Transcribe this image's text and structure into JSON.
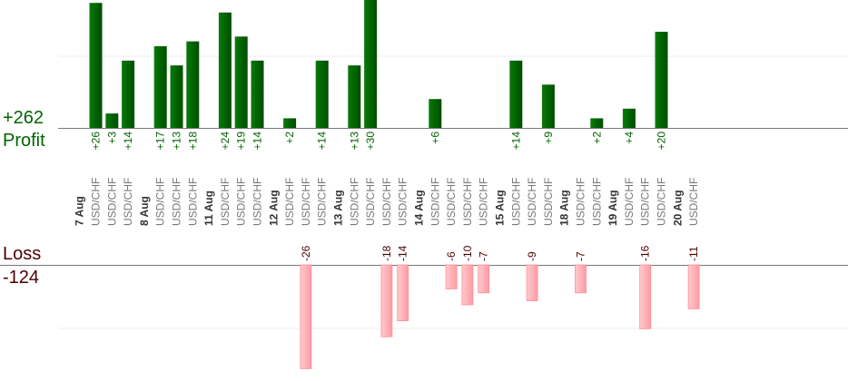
{
  "summary": {
    "profit_total": "+262",
    "profit_label": "Profit",
    "loss_label": "Loss",
    "loss_total": "-124"
  },
  "colors": {
    "profit_bar": "#006400",
    "profit_text": "#006400",
    "loss_bar": "#ffb3b8",
    "loss_bar_edge": "#ff8f99",
    "loss_text": "#4a0000",
    "date_text": "#333333",
    "symbol_text": "#777777",
    "axis_line": "#777777",
    "grid_line": "#eeeeee"
  },
  "chart_data": {
    "type": "bar",
    "grid": true,
    "days": [
      {
        "date": "7 Aug",
        "trades": [
          {
            "symbol": "USD/CHF",
            "label": "+26",
            "value": 26
          },
          {
            "symbol": "USD/CHF",
            "label": "+3",
            "value": 3
          },
          {
            "symbol": "USD/CHF",
            "label": "+14",
            "value": 14
          }
        ]
      },
      {
        "date": "8 Aug",
        "trades": [
          {
            "symbol": "USD/CHF",
            "label": "+17",
            "value": 17
          },
          {
            "symbol": "USD/CHF",
            "label": "+13",
            "value": 13
          },
          {
            "symbol": "USD/CHF",
            "label": "+18",
            "value": 18
          }
        ]
      },
      {
        "date": "11 Aug",
        "trades": [
          {
            "symbol": "USD/CHF",
            "label": "+24",
            "value": 24
          },
          {
            "symbol": "USD/CHF",
            "label": "+19",
            "value": 19
          },
          {
            "symbol": "USD/CHF",
            "label": "+14",
            "value": 14
          }
        ]
      },
      {
        "date": "12 Aug",
        "trades": [
          {
            "symbol": "USD/CHF",
            "label": "+2",
            "value": 2
          },
          {
            "symbol": "USD/CHF",
            "label": "-26",
            "value": -26
          },
          {
            "symbol": "USD/CHF",
            "label": "+14",
            "value": 14
          }
        ]
      },
      {
        "date": "13 Aug",
        "trades": [
          {
            "symbol": "USD/CHF",
            "label": "+13",
            "value": 13
          },
          {
            "symbol": "USD/CHF",
            "label": "+30",
            "value": 30
          },
          {
            "symbol": "USD/CHF",
            "label": "-18",
            "value": -18
          },
          {
            "symbol": "USD/CHF",
            "label": "-14",
            "value": -14
          }
        ]
      },
      {
        "date": "14 Aug",
        "trades": [
          {
            "symbol": "USD/CHF",
            "label": "+6",
            "value": 6
          },
          {
            "symbol": "USD/CHF",
            "label": "-6",
            "value": -6
          },
          {
            "symbol": "USD/CHF",
            "label": "-10",
            "value": -10
          },
          {
            "symbol": "USD/CHF",
            "label": "-7",
            "value": -7
          }
        ]
      },
      {
        "date": "15 Aug",
        "trades": [
          {
            "symbol": "USD/CHF",
            "label": "+14",
            "value": 14
          },
          {
            "symbol": "USD/CHF",
            "label": "-9",
            "value": -9
          },
          {
            "symbol": "USD/CHF",
            "label": "+9",
            "value": 9
          }
        ]
      },
      {
        "date": "18 Aug",
        "trades": [
          {
            "symbol": "USD/CHF",
            "label": "-7",
            "value": -7
          },
          {
            "symbol": "USD/CHF",
            "label": "+2",
            "value": 2
          }
        ]
      },
      {
        "date": "19 Aug",
        "trades": [
          {
            "symbol": "USD/CHF",
            "label": "+4",
            "value": 4
          },
          {
            "symbol": "USD/CHF",
            "label": "-16",
            "value": -16
          },
          {
            "symbol": "USD/CHF",
            "label": "+20",
            "value": 20
          }
        ]
      },
      {
        "date": "20 Aug",
        "trades": [
          {
            "symbol": "USD/CHF",
            "label": "-11",
            "value": -11
          }
        ]
      }
    ]
  }
}
